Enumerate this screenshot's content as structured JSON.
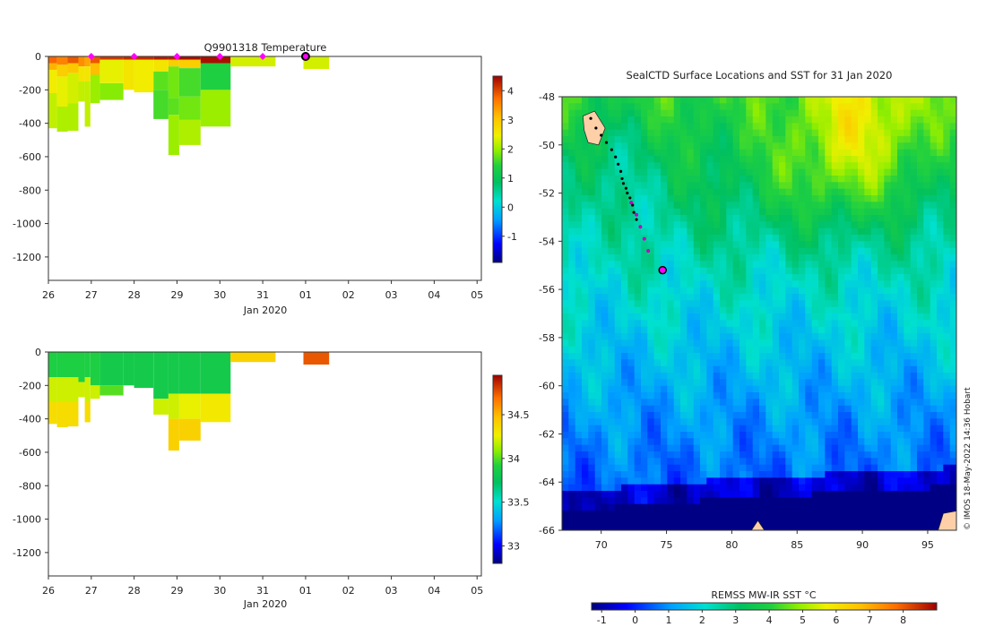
{
  "chart_data": [
    {
      "type": "heatmap",
      "id": "temp",
      "title": "Q9901318  Temperature",
      "xlabel": "Jan 2020",
      "ylabel": "",
      "x_ticks": [
        "26",
        "27",
        "28",
        "29",
        "30",
        "31",
        "01",
        "02",
        "03",
        "04",
        "05"
      ],
      "xlim": [
        26,
        36.1
      ],
      "ylim": [
        -1340,
        0
      ],
      "y_ticks": [
        0,
        -200,
        -400,
        -600,
        -800,
        -1000,
        -1200
      ],
      "colorbar": {
        "min": -1.9,
        "max": 4.5,
        "ticks": [
          -1,
          0,
          1,
          2,
          3,
          4
        ]
      },
      "surface_markers": [
        27,
        28,
        29,
        30,
        31
      ],
      "latest_marker": 32,
      "profiles": [
        {
          "start": 26.0,
          "end": 26.2,
          "depth": 430,
          "layers": [
            [
              0,
              3.8
            ],
            [
              40,
              3.2
            ],
            [
              80,
              2.5
            ],
            [
              220,
              2.2
            ],
            [
              430,
              2.0
            ]
          ]
        },
        {
          "start": 26.2,
          "end": 26.45,
          "depth": 450,
          "layers": [
            [
              0,
              3.6
            ],
            [
              50,
              2.9
            ],
            [
              120,
              2.4
            ],
            [
              300,
              2.1
            ],
            [
              450,
              2.0
            ]
          ]
        },
        {
          "start": 26.45,
          "end": 26.7,
          "depth": 445,
          "layers": [
            [
              0,
              3.9
            ],
            [
              40,
              3.0
            ],
            [
              100,
              2.3
            ],
            [
              280,
              2.1
            ],
            [
              445,
              2.0
            ]
          ]
        },
        {
          "start": 26.7,
          "end": 26.85,
          "depth": 270,
          "layers": [
            [
              0,
              3.5
            ],
            [
              60,
              2.6
            ],
            [
              150,
              2.2
            ],
            [
              270,
              2.0
            ]
          ]
        },
        {
          "start": 26.85,
          "end": 26.98,
          "depth": 420,
          "layers": [
            [
              0,
              3.3
            ],
            [
              60,
              2.6
            ],
            [
              150,
              2.2
            ],
            [
              420,
              2.0
            ]
          ]
        },
        {
          "start": 26.98,
          "end": 27.2,
          "depth": 280,
          "layers": [
            [
              0,
              3.9
            ],
            [
              40,
              3.1
            ],
            [
              110,
              2.0
            ],
            [
              280,
              1.9
            ]
          ]
        },
        {
          "start": 27.2,
          "end": 27.75,
          "depth": 260,
          "layers": [
            [
              0,
              4.1
            ],
            [
              20,
              2.4
            ],
            [
              160,
              1.9
            ],
            [
              260,
              2.0
            ]
          ]
        },
        {
          "start": 27.75,
          "end": 28.0,
          "depth": 200,
          "layers": [
            [
              0,
              4.2
            ],
            [
              20,
              2.6
            ],
            [
              200,
              2.1
            ]
          ]
        },
        {
          "start": 28.0,
          "end": 28.45,
          "depth": 215,
          "layers": [
            [
              0,
              4.2
            ],
            [
              20,
              2.5
            ],
            [
              215,
              2.1
            ]
          ]
        },
        {
          "start": 28.45,
          "end": 28.8,
          "depth": 375,
          "layers": [
            [
              0,
              4.3
            ],
            [
              20,
              2.6
            ],
            [
              90,
              1.7
            ],
            [
              200,
              1.6
            ],
            [
              375,
              2.0
            ]
          ]
        },
        {
          "start": 28.8,
          "end": 29.05,
          "depth": 590,
          "layers": [
            [
              0,
              4.3
            ],
            [
              20,
              2.9
            ],
            [
              60,
              1.8
            ],
            [
              250,
              1.7
            ],
            [
              350,
              2.0
            ],
            [
              590,
              2.0
            ]
          ]
        },
        {
          "start": 29.05,
          "end": 29.55,
          "depth": 530,
          "layers": [
            [
              0,
              4.4
            ],
            [
              20,
              2.9
            ],
            [
              70,
              1.6
            ],
            [
              240,
              1.8
            ],
            [
              380,
              2.1
            ],
            [
              530,
              2.1
            ]
          ]
        },
        {
          "start": 29.55,
          "end": 30.25,
          "depth": 420,
          "layers": [
            [
              0,
              4.4
            ],
            [
              40,
              1.4
            ],
            [
              200,
              2.0
            ],
            [
              420,
              2.1
            ]
          ]
        },
        {
          "start": 30.25,
          "end": 31.3,
          "depth": 60,
          "layers": [
            [
              0,
              2.3
            ]
          ]
        },
        {
          "start": 31.95,
          "end": 32.55,
          "depth": 75,
          "layers": [
            [
              0,
              2.3
            ]
          ]
        }
      ]
    },
    {
      "type": "heatmap",
      "id": "salinity",
      "title": "",
      "xlabel": "Jan 2020",
      "ylabel": "",
      "x_ticks": [
        "26",
        "27",
        "28",
        "29",
        "30",
        "31",
        "01",
        "02",
        "03",
        "04",
        "05"
      ],
      "xlim": [
        26,
        36.1
      ],
      "ylim": [
        -1340,
        0
      ],
      "y_ticks": [
        0,
        -200,
        -400,
        -600,
        -800,
        -1000,
        -1200
      ],
      "colorbar": {
        "min": 32.8,
        "max": 34.95,
        "ticks": [
          33,
          33.5,
          34,
          34.5
        ]
      },
      "profiles": [
        {
          "start": 26.0,
          "end": 26.2,
          "depth": 430,
          "layers": [
            [
              0,
              33.9
            ],
            [
              150,
              34.2
            ],
            [
              300,
              34.35
            ],
            [
              430,
              34.4
            ]
          ]
        },
        {
          "start": 26.2,
          "end": 26.45,
          "depth": 450,
          "layers": [
            [
              0,
              33.9
            ],
            [
              150,
              34.2
            ],
            [
              300,
              34.35
            ],
            [
              450,
              34.4
            ]
          ]
        },
        {
          "start": 26.45,
          "end": 26.7,
          "depth": 445,
          "layers": [
            [
              0,
              33.9
            ],
            [
              150,
              34.2
            ],
            [
              300,
              34.35
            ],
            [
              445,
              34.4
            ]
          ]
        },
        {
          "start": 26.7,
          "end": 26.85,
          "depth": 270,
          "layers": [
            [
              0,
              33.9
            ],
            [
              180,
              34.2
            ],
            [
              270,
              34.3
            ]
          ]
        },
        {
          "start": 26.85,
          "end": 26.98,
          "depth": 420,
          "layers": [
            [
              0,
              33.9
            ],
            [
              150,
              34.2
            ],
            [
              300,
              34.35
            ],
            [
              420,
              34.4
            ]
          ]
        },
        {
          "start": 26.98,
          "end": 27.2,
          "depth": 280,
          "layers": [
            [
              0,
              33.9
            ],
            [
              200,
              34.2
            ],
            [
              280,
              34.3
            ]
          ]
        },
        {
          "start": 27.2,
          "end": 27.75,
          "depth": 260,
          "layers": [
            [
              0,
              33.85
            ],
            [
              200,
              34.0
            ],
            [
              260,
              34.1
            ]
          ]
        },
        {
          "start": 27.75,
          "end": 28.0,
          "depth": 200,
          "layers": [
            [
              0,
              33.85
            ],
            [
              200,
              34.0
            ]
          ]
        },
        {
          "start": 28.0,
          "end": 28.45,
          "depth": 215,
          "layers": [
            [
              0,
              33.85
            ],
            [
              215,
              34.0
            ]
          ]
        },
        {
          "start": 28.45,
          "end": 28.8,
          "depth": 375,
          "layers": [
            [
              0,
              33.85
            ],
            [
              280,
              34.2
            ],
            [
              375,
              34.35
            ]
          ]
        },
        {
          "start": 28.8,
          "end": 29.05,
          "depth": 590,
          "layers": [
            [
              0,
              33.85
            ],
            [
              250,
              34.2
            ],
            [
              400,
              34.4
            ],
            [
              590,
              34.45
            ]
          ]
        },
        {
          "start": 29.05,
          "end": 29.55,
          "depth": 530,
          "layers": [
            [
              0,
              33.85
            ],
            [
              250,
              34.25
            ],
            [
              400,
              34.4
            ],
            [
              530,
              34.45
            ]
          ]
        },
        {
          "start": 29.55,
          "end": 30.25,
          "depth": 420,
          "layers": [
            [
              0,
              33.85
            ],
            [
              250,
              34.3
            ],
            [
              420,
              34.45
            ]
          ]
        },
        {
          "start": 30.25,
          "end": 31.3,
          "depth": 60,
          "layers": [
            [
              0,
              34.4
            ]
          ]
        },
        {
          "start": 31.95,
          "end": 32.55,
          "depth": 75,
          "layers": [
            [
              0,
              34.75
            ]
          ]
        }
      ]
    },
    {
      "type": "heatmap",
      "id": "sst_map",
      "title": "SealCTD Surface Locations and SST for 31 Jan 2020",
      "xlim": [
        67,
        97.2
      ],
      "ylim": [
        -66,
        -48
      ],
      "x_ticks": [
        70,
        75,
        80,
        85,
        90,
        95
      ],
      "y_ticks": [
        -48,
        -50,
        -52,
        -54,
        -56,
        -58,
        -60,
        -62,
        -64,
        -66
      ],
      "colorbar": {
        "label": "REMSS MW-IR SST °C",
        "min": -1.3,
        "max": 9,
        "ticks": [
          -1,
          0,
          1,
          2,
          3,
          4,
          5,
          6,
          7,
          8
        ]
      },
      "credit": "© IMOS 18-May-2022 14:36 Hobart",
      "track_black": [
        [
          69.2,
          -48.9
        ],
        [
          69.6,
          -49.3
        ],
        [
          70.0,
          -49.6
        ],
        [
          70.4,
          -49.9
        ],
        [
          70.8,
          -50.2
        ],
        [
          71.1,
          -50.5
        ],
        [
          71.3,
          -50.8
        ],
        [
          71.5,
          -51.1
        ],
        [
          71.6,
          -51.4
        ],
        [
          71.7,
          -51.6
        ],
        [
          71.9,
          -51.8
        ],
        [
          72.0,
          -52.0
        ],
        [
          72.2,
          -52.2
        ],
        [
          72.4,
          -52.5
        ],
        [
          72.5,
          -52.8
        ],
        [
          72.7,
          -53.1
        ]
      ],
      "track_magenta": [
        [
          72.3,
          -52.4
        ],
        [
          72.7,
          -52.9
        ],
        [
          73.0,
          -53.4
        ],
        [
          73.3,
          -53.9
        ],
        [
          73.6,
          -54.4
        ]
      ],
      "latest_position": [
        74.7,
        -55.2
      ]
    }
  ]
}
